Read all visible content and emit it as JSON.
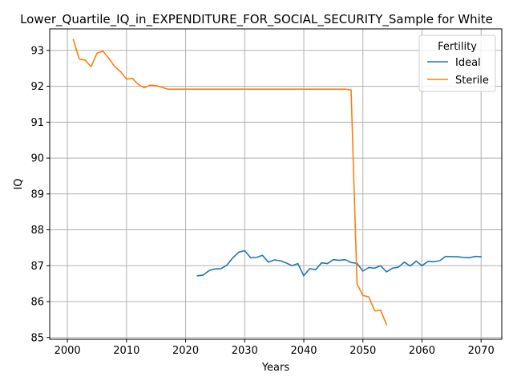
{
  "chart_data": {
    "type": "line",
    "title": "Lower_Quartile_IQ_in_EXPENDITURE_FOR_SOCIAL_SECURITY_Sample for White",
    "xlabel": "Years",
    "ylabel": "IQ",
    "xlim": [
      1997,
      2073.5
    ],
    "ylim": [
      84.95,
      93.6
    ],
    "xticks": [
      2000,
      2010,
      2020,
      2030,
      2040,
      2050,
      2060,
      2070
    ],
    "yticks": [
      85,
      86,
      87,
      88,
      89,
      90,
      91,
      92,
      93
    ],
    "grid": true,
    "legend": {
      "title": "Fertility",
      "position": "top-right"
    },
    "series": [
      {
        "name": "Ideal",
        "color": "#1f77b4",
        "x": [
          2022,
          2023,
          2024,
          2025,
          2026,
          2027,
          2028,
          2029,
          2030,
          2031,
          2032,
          2033,
          2034,
          2035,
          2036,
          2037,
          2038,
          2039,
          2040,
          2041,
          2042,
          2043,
          2044,
          2045,
          2046,
          2047,
          2048,
          2049,
          2050,
          2051,
          2052,
          2053,
          2054,
          2055,
          2056,
          2057,
          2058,
          2059,
          2060,
          2061,
          2062,
          2063,
          2064,
          2065,
          2066,
          2067,
          2068,
          2069,
          2070
        ],
        "y": [
          86.72,
          86.74,
          86.87,
          86.91,
          86.92,
          87.02,
          87.22,
          87.38,
          87.42,
          87.22,
          87.23,
          87.29,
          87.1,
          87.16,
          87.14,
          87.08,
          87.0,
          87.06,
          86.72,
          86.92,
          86.89,
          87.08,
          87.06,
          87.17,
          87.15,
          87.17,
          87.09,
          87.07,
          86.85,
          86.95,
          86.93,
          87.0,
          86.83,
          86.93,
          86.96,
          87.1,
          86.99,
          87.13,
          87.0,
          87.12,
          87.11,
          87.14,
          87.26,
          87.25,
          87.25,
          87.23,
          87.22,
          87.26,
          87.25
        ]
      },
      {
        "name": "Sterile",
        "color": "#ff7f0e",
        "x": [
          2001,
          2002,
          2003,
          2004,
          2005,
          2006,
          2007,
          2008,
          2009,
          2010,
          2011,
          2012,
          2013,
          2014,
          2015,
          2016,
          2017,
          2018,
          2019,
          2020,
          2021,
          2022,
          2023,
          2024,
          2025,
          2026,
          2027,
          2028,
          2029,
          2030,
          2031,
          2032,
          2033,
          2034,
          2035,
          2036,
          2037,
          2038,
          2039,
          2040,
          2041,
          2042,
          2043,
          2044,
          2045,
          2046,
          2047,
          2048,
          2049,
          2050,
          2051,
          2052,
          2053,
          2054
        ],
        "y": [
          93.3,
          92.76,
          92.73,
          92.55,
          92.92,
          92.98,
          92.78,
          92.55,
          92.41,
          92.2,
          92.22,
          92.05,
          91.96,
          92.03,
          92.02,
          91.97,
          91.92,
          91.92,
          91.92,
          91.92,
          91.92,
          91.92,
          91.92,
          91.92,
          91.92,
          91.92,
          91.92,
          91.92,
          91.92,
          91.92,
          91.92,
          91.92,
          91.92,
          91.92,
          91.92,
          91.92,
          91.92,
          91.92,
          91.92,
          91.92,
          91.92,
          91.92,
          91.92,
          91.92,
          91.92,
          91.92,
          91.92,
          91.9,
          86.5,
          86.17,
          86.13,
          85.74,
          85.76,
          85.36
        ]
      }
    ]
  }
}
